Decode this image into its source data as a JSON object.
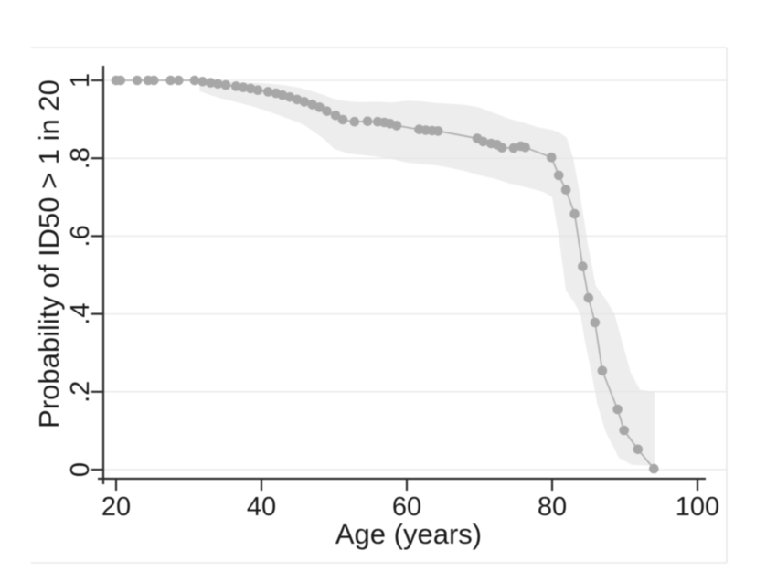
{
  "figure": {
    "background": "#ffffff",
    "frame_color": "#e9e9e9",
    "grid_color": "#e4e4e4",
    "axis_color": "#2f2f2f",
    "text_color": "#1b1b1b"
  },
  "chart_data": {
    "type": "line",
    "title": "",
    "xlabel": "Age (years)",
    "ylabel": "Probability of ID50 > 1 in 20",
    "xlim": [
      18.2,
      104.0
    ],
    "ylim": [
      -0.025,
      1.085
    ],
    "xticks": [
      20,
      40,
      60,
      80,
      100
    ],
    "yticks": {
      "values": [
        0,
        0.2,
        0.4,
        0.6,
        0.8,
        1
      ],
      "labels": [
        "0",
        ".2",
        ".4",
        ".6",
        ".8",
        "1"
      ]
    },
    "grid": "horizontal",
    "legend": "none",
    "series": [
      {
        "name": "probability-estimate",
        "marker": "circle",
        "marker_color": "#a7a7a7",
        "line_color": "#b2b2b2",
        "points": [
          [
            20.0,
            1.0
          ],
          [
            20.6,
            1.0
          ],
          [
            22.9,
            1.0
          ],
          [
            24.4,
            1.0
          ],
          [
            25.2,
            1.0
          ],
          [
            27.5,
            1.0
          ],
          [
            28.6,
            1.0
          ],
          [
            30.8,
            1.0
          ],
          [
            31.9,
            0.997
          ],
          [
            33.0,
            0.994
          ],
          [
            34.0,
            0.991
          ],
          [
            35.1,
            0.988
          ],
          [
            36.5,
            0.985
          ],
          [
            37.5,
            0.982
          ],
          [
            38.5,
            0.979
          ],
          [
            39.5,
            0.975
          ],
          [
            40.9,
            0.971
          ],
          [
            42.0,
            0.967
          ],
          [
            42.9,
            0.962
          ],
          [
            43.9,
            0.957
          ],
          [
            44.9,
            0.951
          ],
          [
            45.9,
            0.945
          ],
          [
            47.0,
            0.938
          ],
          [
            48.0,
            0.931
          ],
          [
            49.0,
            0.921
          ],
          [
            50.2,
            0.91
          ],
          [
            51.2,
            0.899
          ],
          [
            52.8,
            0.894
          ],
          [
            54.6,
            0.895
          ],
          [
            56.0,
            0.894
          ],
          [
            56.9,
            0.892
          ],
          [
            57.7,
            0.889
          ],
          [
            58.6,
            0.884
          ],
          [
            61.7,
            0.874
          ],
          [
            62.6,
            0.872
          ],
          [
            63.5,
            0.871
          ],
          [
            64.3,
            0.87
          ],
          [
            69.7,
            0.851
          ],
          [
            70.5,
            0.843
          ],
          [
            71.6,
            0.838
          ],
          [
            72.4,
            0.835
          ],
          [
            73.1,
            0.827
          ],
          [
            74.7,
            0.826
          ],
          [
            75.7,
            0.831
          ],
          [
            76.3,
            0.828
          ],
          [
            79.9,
            0.802
          ],
          [
            80.9,
            0.756
          ],
          [
            81.9,
            0.719
          ],
          [
            83.1,
            0.657
          ],
          [
            84.2,
            0.522
          ],
          [
            85.0,
            0.441
          ],
          [
            85.9,
            0.378
          ],
          [
            86.9,
            0.254
          ],
          [
            89.0,
            0.155
          ],
          [
            89.9,
            0.101
          ],
          [
            91.8,
            0.052
          ],
          [
            94.0,
            0.002
          ]
        ]
      }
    ],
    "band": {
      "name": "confidence-band",
      "color": "#ededed",
      "upper": [
        [
          31.5,
          1.001
        ],
        [
          34,
          0.998
        ],
        [
          37,
          0.996
        ],
        [
          40,
          0.993
        ],
        [
          43,
          0.988
        ],
        [
          45,
          0.982
        ],
        [
          47,
          0.972
        ],
        [
          48.5,
          0.963
        ],
        [
          50,
          0.952
        ],
        [
          52,
          0.946
        ],
        [
          54,
          0.944
        ],
        [
          56,
          0.945
        ],
        [
          58,
          0.943
        ],
        [
          60,
          0.948
        ],
        [
          62,
          0.946
        ],
        [
          64,
          0.942
        ],
        [
          66,
          0.94
        ],
        [
          68,
          0.937
        ],
        [
          70,
          0.93
        ],
        [
          72,
          0.916
        ],
        [
          74,
          0.902
        ],
        [
          76,
          0.892
        ],
        [
          78,
          0.88
        ],
        [
          80,
          0.873
        ],
        [
          81,
          0.866
        ],
        [
          82,
          0.853
        ],
        [
          82.9,
          0.8
        ],
        [
          83.9,
          0.7
        ],
        [
          84.9,
          0.58
        ],
        [
          86,
          0.472
        ],
        [
          87.3,
          0.44
        ],
        [
          88.6,
          0.4
        ],
        [
          89.6,
          0.33
        ],
        [
          90.8,
          0.25
        ],
        [
          92.1,
          0.205
        ],
        [
          94.1,
          0.2
        ],
        [
          94.1,
          0.0
        ]
      ],
      "lower": [
        [
          31.5,
          0.972
        ],
        [
          33,
          0.962
        ],
        [
          35,
          0.951
        ],
        [
          37,
          0.942
        ],
        [
          39,
          0.932
        ],
        [
          41,
          0.92
        ],
        [
          43,
          0.906
        ],
        [
          45,
          0.893
        ],
        [
          46,
          0.884
        ],
        [
          47,
          0.871
        ],
        [
          48,
          0.858
        ],
        [
          49,
          0.842
        ],
        [
          50,
          0.824
        ],
        [
          52,
          0.812
        ],
        [
          54,
          0.808
        ],
        [
          56,
          0.804
        ],
        [
          58,
          0.798
        ],
        [
          60,
          0.789
        ],
        [
          62,
          0.785
        ],
        [
          64,
          0.782
        ],
        [
          66,
          0.775
        ],
        [
          68,
          0.767
        ],
        [
          70,
          0.756
        ],
        [
          72,
          0.748
        ],
        [
          74,
          0.736
        ],
        [
          76,
          0.727
        ],
        [
          78,
          0.718
        ],
        [
          79,
          0.712
        ],
        [
          80,
          0.7
        ],
        [
          80.9,
          0.6
        ],
        [
          81.9,
          0.46
        ],
        [
          83,
          0.43
        ],
        [
          83.9,
          0.4
        ],
        [
          84.5,
          0.33
        ],
        [
          85.4,
          0.25
        ],
        [
          86.2,
          0.17
        ],
        [
          87.3,
          0.1
        ],
        [
          89.2,
          0.03
        ],
        [
          91,
          0.012
        ],
        [
          94.0,
          0.01
        ]
      ]
    }
  }
}
